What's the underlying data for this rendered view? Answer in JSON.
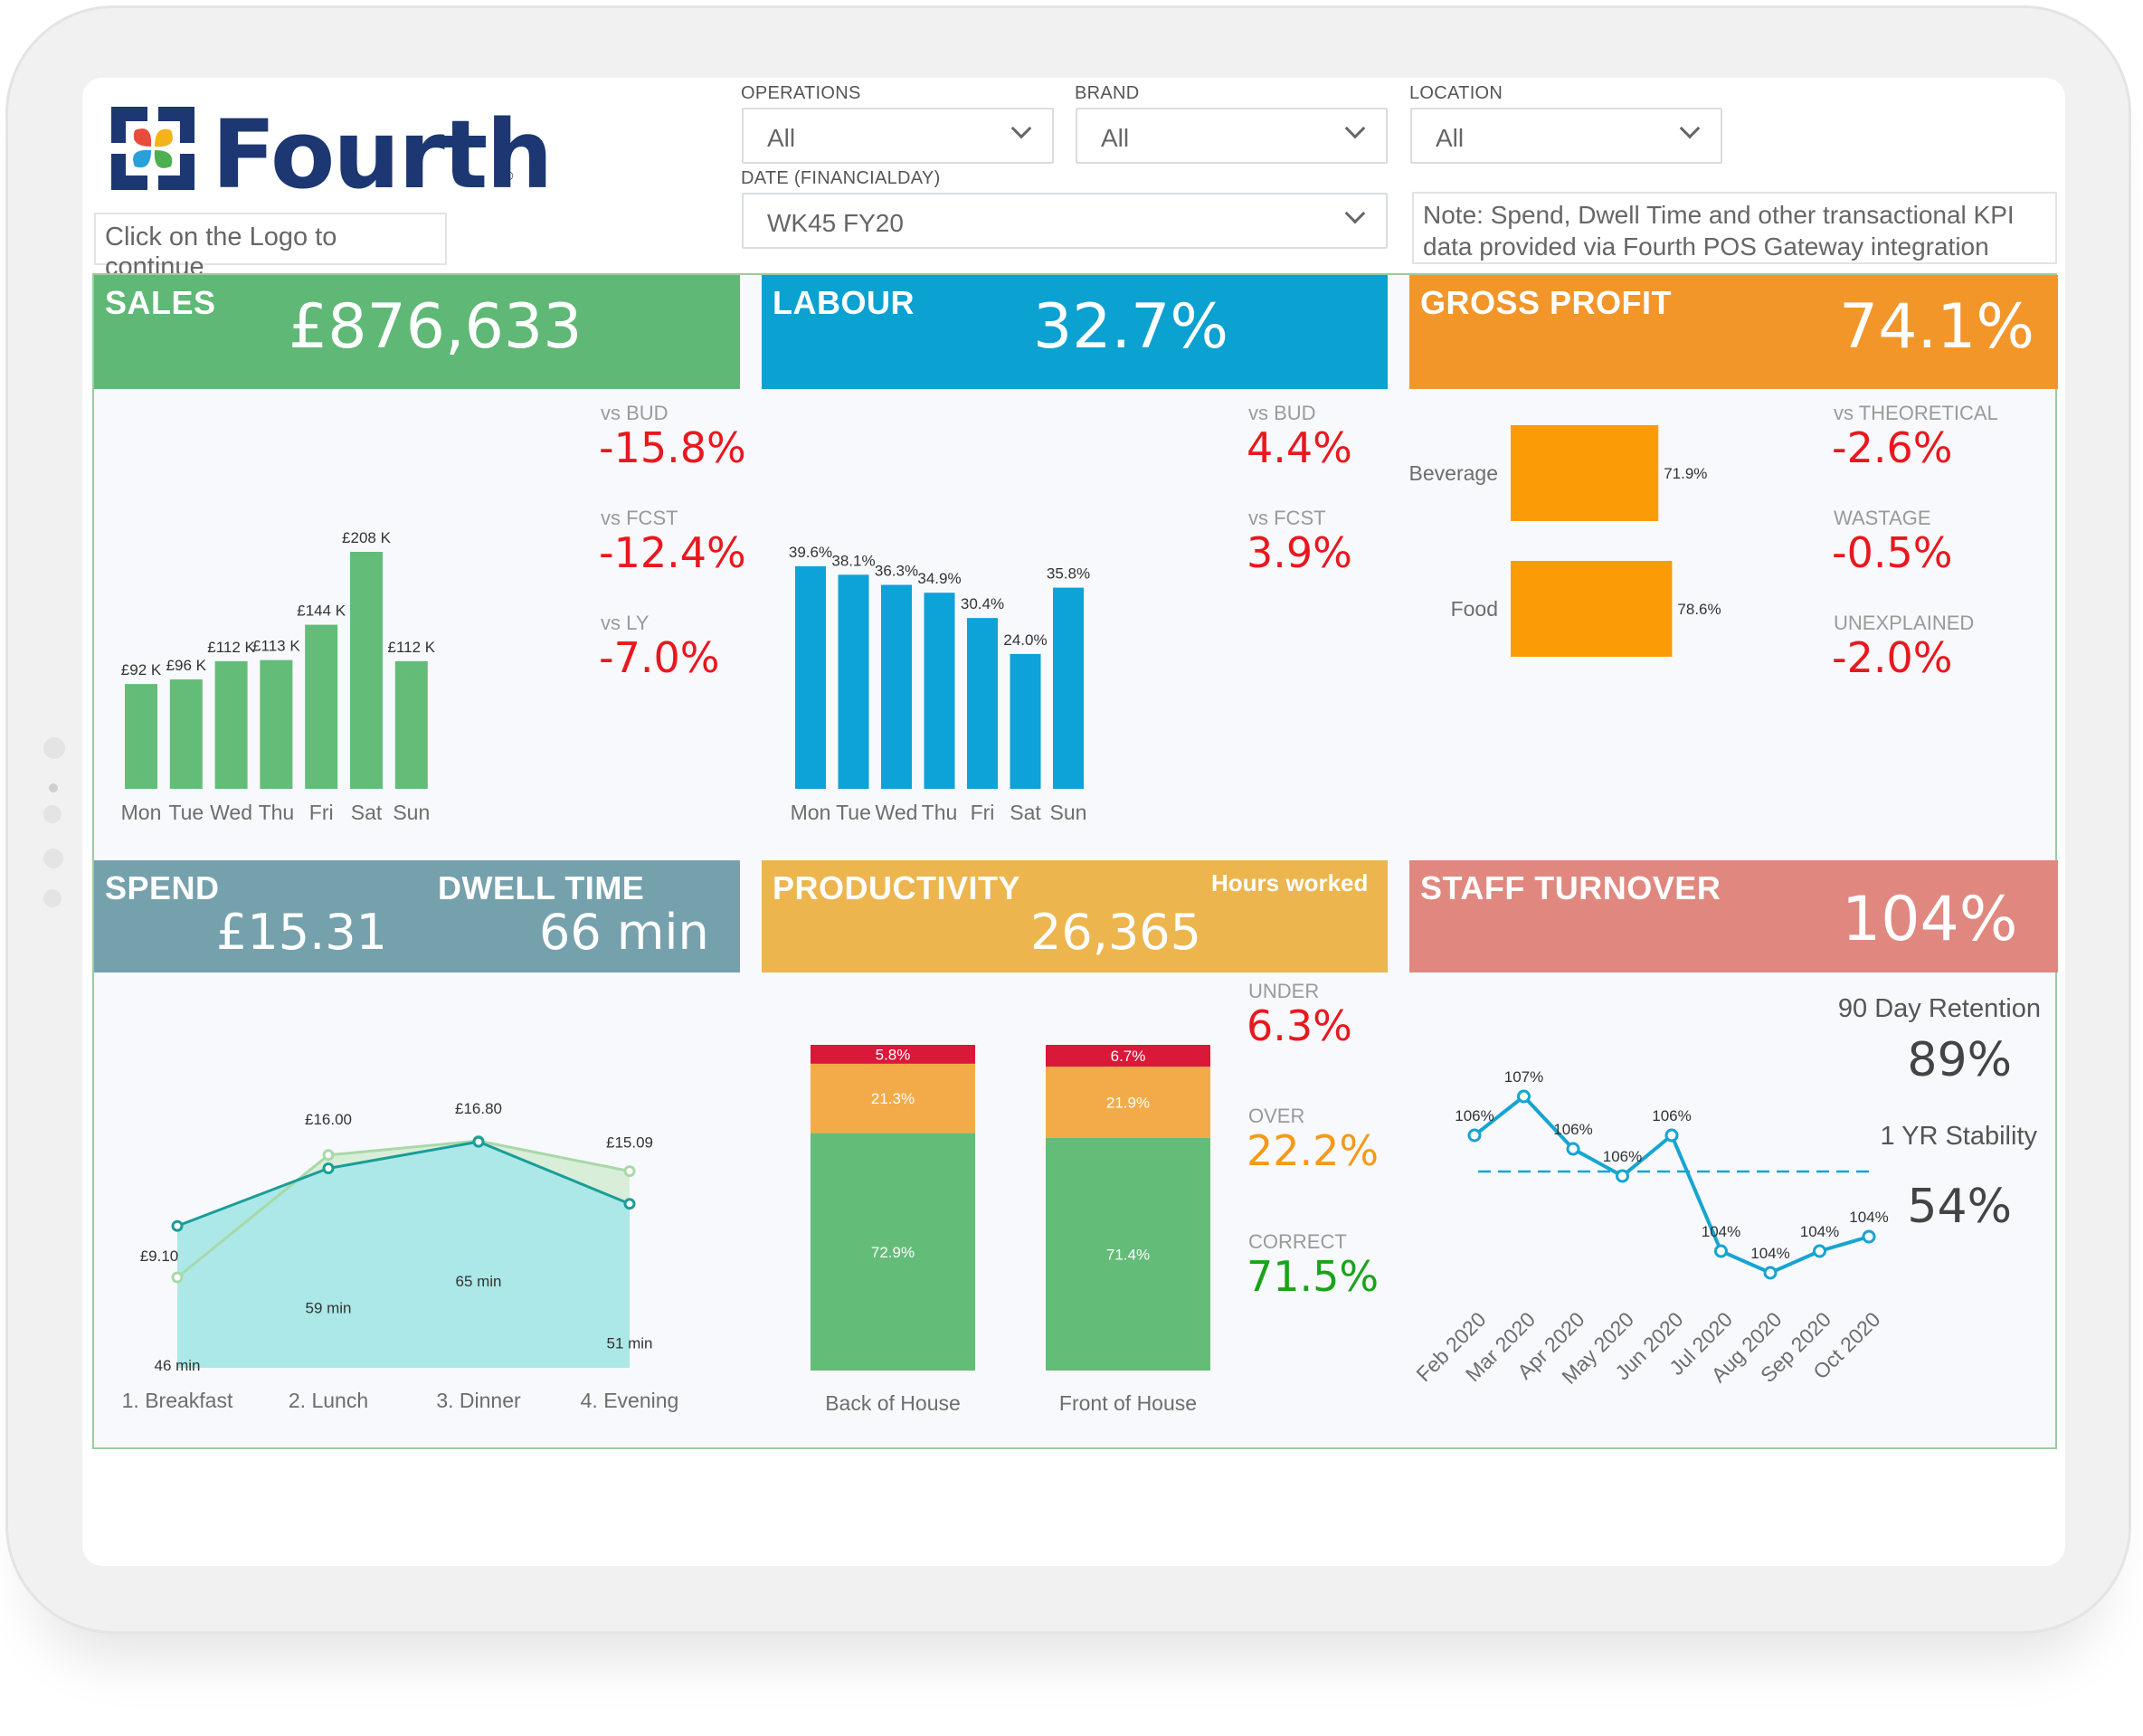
{
  "header": {
    "logo_text": "Fourth",
    "logo_reg": "®",
    "logo_note": "Click on the Logo to continue",
    "filters": {
      "operations": {
        "label": "OPERATIONS",
        "value": "All"
      },
      "brand": {
        "label": "BRAND",
        "value": "All"
      },
      "location": {
        "label": "LOCATION",
        "value": "All"
      },
      "date": {
        "label": "DATE (FINANCIALDAY)",
        "value": "WK45 FY20"
      }
    },
    "note": "Note: Spend, Dwell Time and other transactional KPI data provided via Fourth POS Gateway integration"
  },
  "colors": {
    "sales": "#5fb876",
    "labour": "#0ba1d1",
    "gross_profit": "#f2962a",
    "spend": "#75a1ad",
    "productivity": "#ecb54e",
    "staff_turnover": "#e0887f",
    "bar_green": "#63bd78",
    "bar_blue": "#0ea3d8",
    "bar_orange": "#fb9b06",
    "negative": "#e8181e"
  },
  "sales": {
    "title": "SALES",
    "value": "£876,633",
    "kpis": [
      {
        "label": "vs BUD",
        "value": "-15.8%"
      },
      {
        "label": "vs FCST",
        "value": "-12.4%"
      },
      {
        "label": "vs LY",
        "value": "-7.0%"
      }
    ]
  },
  "labour": {
    "title": "LABOUR",
    "value": "32.7%",
    "kpis": [
      {
        "label": "vs BUD",
        "value": "4.4%"
      },
      {
        "label": "vs FCST",
        "value": "3.9%"
      }
    ]
  },
  "gross_profit": {
    "title": "GROSS PROFIT",
    "value": "74.1%",
    "kpis": [
      {
        "label": "vs THEORETICAL",
        "value": "-2.6%"
      },
      {
        "label": "WASTAGE",
        "value": "-0.5%"
      },
      {
        "label": "UNEXPLAINED",
        "value": "-2.0%"
      }
    ]
  },
  "spend": {
    "title": "SPEND",
    "value": "£15.31",
    "dwell_title": "DWELL TIME",
    "dwell_value": "66 min"
  },
  "productivity": {
    "title": "PRODUCTIVITY",
    "sub": "Hours worked",
    "value": "26,365",
    "kpis": [
      {
        "label": "UNDER",
        "value": "6.3%"
      },
      {
        "label": "OVER",
        "value": "22.2%"
      },
      {
        "label": "CORRECT",
        "value": "71.5%"
      }
    ]
  },
  "staff_turnover": {
    "title": "STAFF TURNOVER",
    "value": "104%",
    "retention_label": "90 Day Retention",
    "retention_value": "89%",
    "stability_label": "1 YR Stability",
    "stability_value": "54%"
  },
  "chart_data": [
    {
      "id": "sales",
      "type": "bar",
      "categories": [
        "Mon",
        "Tue",
        "Wed",
        "Thu",
        "Fri",
        "Sat",
        "Sun"
      ],
      "values": [
        92,
        96,
        112,
        113,
        144,
        208,
        112
      ],
      "labels": [
        "£92 K",
        "£96 K",
        "£112 K",
        "£113 K",
        "£144 K",
        "£208 K",
        "£112 K"
      ],
      "ylim": [
        0,
        208
      ]
    },
    {
      "id": "labour",
      "type": "bar",
      "categories": [
        "Mon",
        "Tue",
        "Wed",
        "Thu",
        "Fri",
        "Sat",
        "Sun"
      ],
      "values": [
        39.6,
        38.1,
        36.3,
        34.9,
        30.4,
        24.0,
        35.8
      ],
      "labels": [
        "39.6%",
        "38.1%",
        "36.3%",
        "34.9%",
        "30.4%",
        "24.0%",
        "35.8%"
      ],
      "ylim": [
        0,
        39.6
      ]
    },
    {
      "id": "gross_profit",
      "type": "bar",
      "orientation": "horizontal",
      "categories": [
        "Beverage",
        "Food"
      ],
      "values": [
        71.9,
        78.6
      ],
      "labels": [
        "71.9%",
        "78.6%"
      ]
    },
    {
      "id": "spend_dwell",
      "type": "area",
      "categories": [
        "1. Breakfast",
        "2. Lunch",
        "3. Dinner",
        "4. Evening"
      ],
      "series": [
        {
          "values": [
            9.1,
            16.0,
            16.8,
            15.09
          ],
          "labels": [
            "£9.10",
            "£16.00",
            "£16.80",
            "£15.09"
          ],
          "color": "#a9d8a9"
        },
        {
          "values": [
            46,
            59,
            65,
            51
          ],
          "labels": [
            "46 min",
            "59 min",
            "65 min",
            "51 min"
          ],
          "color": "#1a9d98"
        }
      ]
    },
    {
      "id": "productivity",
      "type": "bar",
      "stacked": true,
      "categories": [
        "Back of House",
        "Front of House"
      ],
      "series": [
        {
          "name": "CORRECT",
          "values": [
            72.9,
            71.4
          ],
          "labels": [
            "72.9%",
            "71.4%"
          ],
          "color": "#63bd78"
        },
        {
          "name": "OVER",
          "values": [
            21.3,
            21.9
          ],
          "labels": [
            "21.3%",
            "21.9%"
          ],
          "color": "#f3ab49"
        },
        {
          "name": "UNDER",
          "values": [
            5.8,
            6.7
          ],
          "labels": [
            "5.8%",
            "6.7%"
          ],
          "color": "#d9183a"
        }
      ]
    },
    {
      "id": "staff_turnover",
      "type": "line",
      "categories": [
        "Feb 2020",
        "Mar 2020",
        "Apr 2020",
        "May 2020",
        "Jun 2020",
        "Jul 2020",
        "Aug 2020",
        "Sep 2020",
        "Oct 2020"
      ],
      "values": [
        106,
        107,
        106,
        106,
        106,
        104,
        104,
        104,
        104
      ],
      "labels": [
        "106%",
        "107%",
        "106%",
        "106%",
        "106%",
        "104%",
        "104%",
        "104%",
        "104%"
      ],
      "color": "#16a4d3"
    }
  ]
}
